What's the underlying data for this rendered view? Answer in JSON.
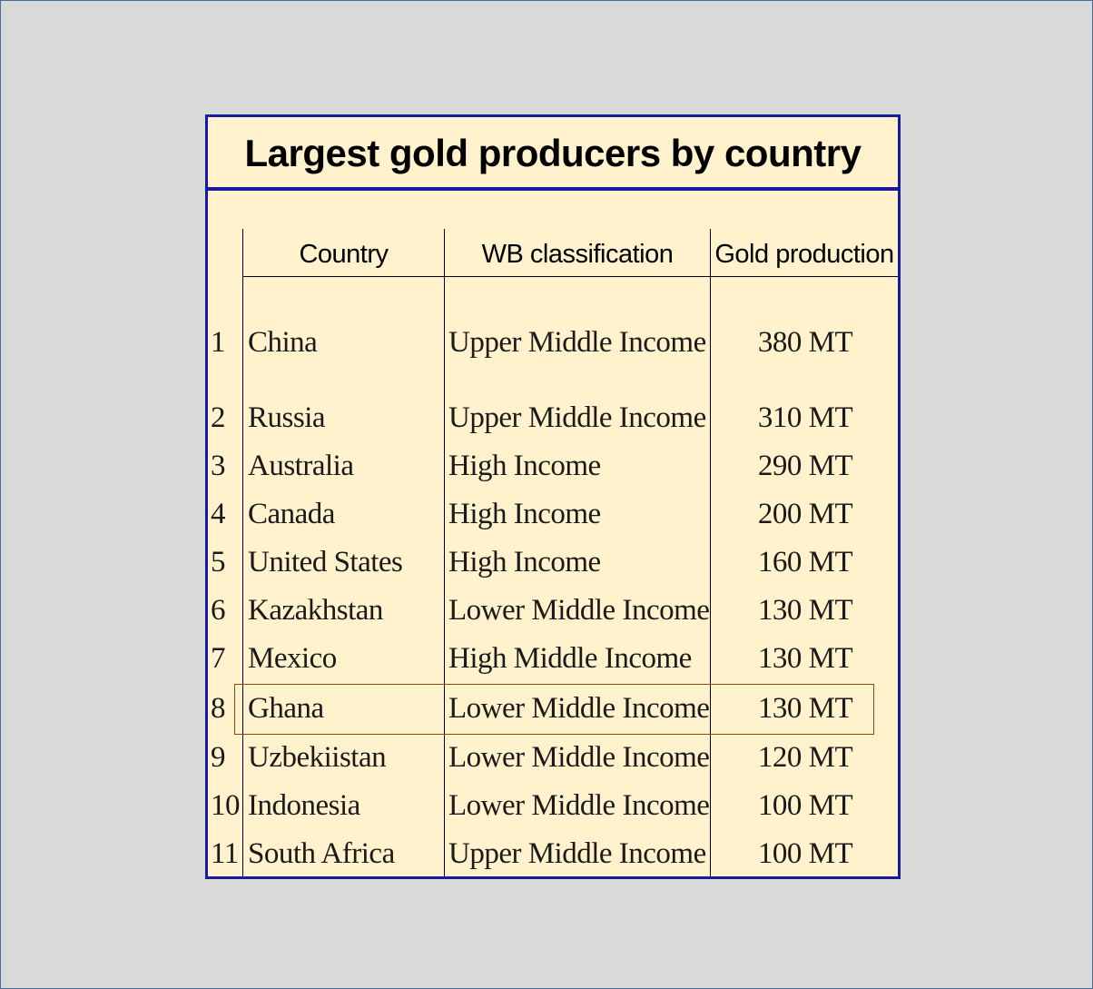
{
  "title": "Largest gold producers by country",
  "columns": {
    "country": "Country",
    "classification": "WB classification",
    "production": "Gold production"
  },
  "rows": [
    {
      "rank": "1",
      "country": "China",
      "classification": "Upper Middle Income",
      "production": "380 MT"
    },
    {
      "rank": "2",
      "country": "Russia",
      "classification": "Upper Middle Income",
      "production": "310 MT"
    },
    {
      "rank": "3",
      "country": "Australia",
      "classification": "High Income",
      "production": "290 MT"
    },
    {
      "rank": "4",
      "country": "Canada",
      "classification": "High Income",
      "production": "200 MT"
    },
    {
      "rank": "5",
      "country": "United States",
      "classification": "High Income",
      "production": "160 MT"
    },
    {
      "rank": "6",
      "country": "Kazakhstan",
      "classification": "Lower Middle Income",
      "production": "130 MT"
    },
    {
      "rank": "7",
      "country": "Mexico",
      "classification": "High Middle Income",
      "production": "130 MT"
    },
    {
      "rank": "8",
      "country": "Ghana",
      "classification": "Lower Middle Income",
      "production": "130 MT"
    },
    {
      "rank": "9",
      "country": "Uzbekiistan",
      "classification": "Lower Middle Income",
      "production": "120 MT"
    },
    {
      "rank": "10",
      "country": "Indonesia",
      "classification": "Lower Middle Income",
      "production": "100 MT"
    },
    {
      "rank": "11",
      "country": "South Africa",
      "classification": "Upper Middle Income",
      "production": "100 MT"
    }
  ],
  "highlighted_row": "8",
  "colors": {
    "background": "#d9d9d9",
    "table_fill": "#fff2cc",
    "border": "#1a1a9c",
    "highlight_border": "#8b4a0c"
  }
}
